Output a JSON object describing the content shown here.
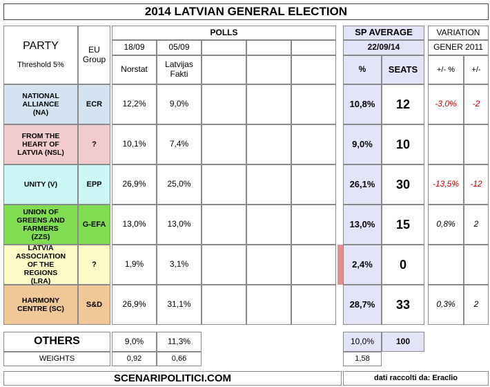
{
  "title": "2014 LATVIAN GENERAL ELECTION",
  "header": {
    "party": "PARTY",
    "threshold": "Threshold 5%",
    "eu_group": "EU Group",
    "polls": "POLLS",
    "poll_dates": [
      "18/09",
      "05/09"
    ],
    "pollsters": [
      "Norstat",
      "Latvijas Fakti"
    ],
    "sp_average": "SP AVERAGE",
    "sp_date": "22/09/14",
    "pct": "%",
    "seats": "SEATS",
    "variation": "VARIATION",
    "variation_base": "GENER 2011",
    "var_pct": "+/- %",
    "var_seats": "+/-"
  },
  "rows": [
    {
      "party": "NATIONAL ALLIANCE (NA)",
      "group": "ECR",
      "color": "#d3e3f1",
      "polls": [
        "12,2%",
        "9,0%"
      ],
      "avg": "10,8%",
      "seats": "12",
      "var_pct": "-3,0%",
      "var_seats": "-2"
    },
    {
      "party": "FROM THE HEART OF LATVIA (NSL)",
      "group": "?",
      "color": "#f2cccc",
      "polls": [
        "10,1%",
        "7,4%"
      ],
      "avg": "9,0%",
      "seats": "10",
      "var_pct": null,
      "var_seats": null
    },
    {
      "party": "UNITY (V)",
      "group": "EPP",
      "color": "#ccf7f7",
      "polls": [
        "26,9%",
        "25,0%"
      ],
      "avg": "26,1%",
      "seats": "30",
      "var_pct": "-13,5%",
      "var_seats": "-12"
    },
    {
      "party": "UNION OF GREENS AND FARMERS (ZZS)",
      "group": "G-EFA",
      "color": "#80dc50",
      "polls": [
        "13,0%",
        "13,0%"
      ],
      "avg": "13,0%",
      "seats": "15",
      "var_pct": "0,8%",
      "var_seats": "2"
    },
    {
      "party": "LATVIA ASSOCIATION OF THE REGIONS (LRA)",
      "group": "?",
      "color": "#fdfcc8",
      "polls": [
        "1,9%",
        "3,1%"
      ],
      "avg": "2,4%",
      "seats": "0",
      "var_pct": null,
      "var_seats": null
    },
    {
      "party": "HARMONY CENTRE (SC)",
      "group": "S&D",
      "color": "#f0c898",
      "polls": [
        "26,9%",
        "31,1%"
      ],
      "avg": "28,7%",
      "seats": "33",
      "var_pct": "0,3%",
      "var_seats": "2"
    }
  ],
  "others": {
    "label": "OTHERS",
    "polls": [
      "9,0%",
      "11,3%"
    ],
    "avg": "10,0%",
    "seats": "100"
  },
  "weights": {
    "label": "WEIGHTS",
    "polls": [
      "0,92",
      "0,66"
    ],
    "avg": "1,58"
  },
  "footer": {
    "site": "SCENARIPOLITICI.COM",
    "credit": "dati raccolti da: Eraclio"
  }
}
